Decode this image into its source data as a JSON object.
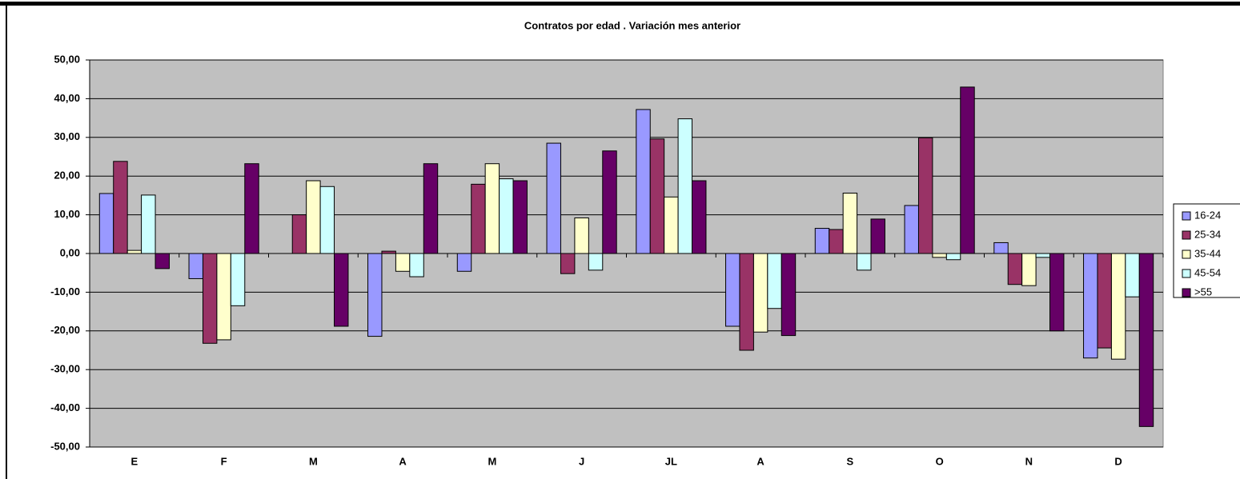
{
  "chart_data": {
    "type": "bar",
    "title": "Contratos por edad . Variación mes anterior",
    "categories": [
      "E",
      "F",
      "M",
      "A",
      "M",
      "J",
      "JL",
      "A",
      "S",
      "O",
      "N",
      "D"
    ],
    "series": [
      {
        "name": "16-24",
        "color": "#9999ff",
        "values": [
          15.5,
          -6.5,
          0,
          -21.4,
          -4.6,
          28.5,
          37.2,
          -18.8,
          6.5,
          12.4,
          2.8,
          -27.0
        ]
      },
      {
        "name": "25-34",
        "color": "#993366",
        "values": [
          23.8,
          -23.2,
          10.0,
          0.6,
          17.9,
          -5.2,
          29.6,
          -25.0,
          6.2,
          29.9,
          -8.0,
          -24.4
        ]
      },
      {
        "name": "35-44",
        "color": "#ffffcc",
        "values": [
          0.8,
          -22.3,
          18.8,
          -4.6,
          23.2,
          9.2,
          14.6,
          -20.3,
          15.6,
          -1.0,
          -8.3,
          -27.3
        ]
      },
      {
        "name": "45-54",
        "color": "#ccffff",
        "values": [
          15.1,
          -13.5,
          17.3,
          -6.0,
          19.3,
          -4.3,
          34.8,
          -14.2,
          -4.3,
          -1.6,
          -1.0,
          -11.2
        ]
      },
      {
        "name": ">55",
        "color": "#660066",
        "values": [
          -3.9,
          23.2,
          -18.8,
          23.2,
          18.8,
          26.5,
          18.8,
          -21.2,
          8.9,
          43.0,
          -20.0,
          -44.7
        ]
      }
    ],
    "ylim": [
      -50,
      50
    ],
    "yticks": [
      {
        "value": -50,
        "label": "-50,00"
      },
      {
        "value": -40,
        "label": "-40,00"
      },
      {
        "value": -30,
        "label": "-30,00"
      },
      {
        "value": -20,
        "label": "-20,00"
      },
      {
        "value": -10,
        "label": "-10,00"
      },
      {
        "value": 0,
        "label": "0,00"
      },
      {
        "value": 10,
        "label": "10,00"
      },
      {
        "value": 20,
        "label": "20,00"
      },
      {
        "value": 30,
        "label": "30,00"
      },
      {
        "value": 40,
        "label": "40,00"
      },
      {
        "value": 50,
        "label": "50,00"
      }
    ],
    "grid": true,
    "plot_background": "#c0c0c0",
    "legend": "right"
  }
}
